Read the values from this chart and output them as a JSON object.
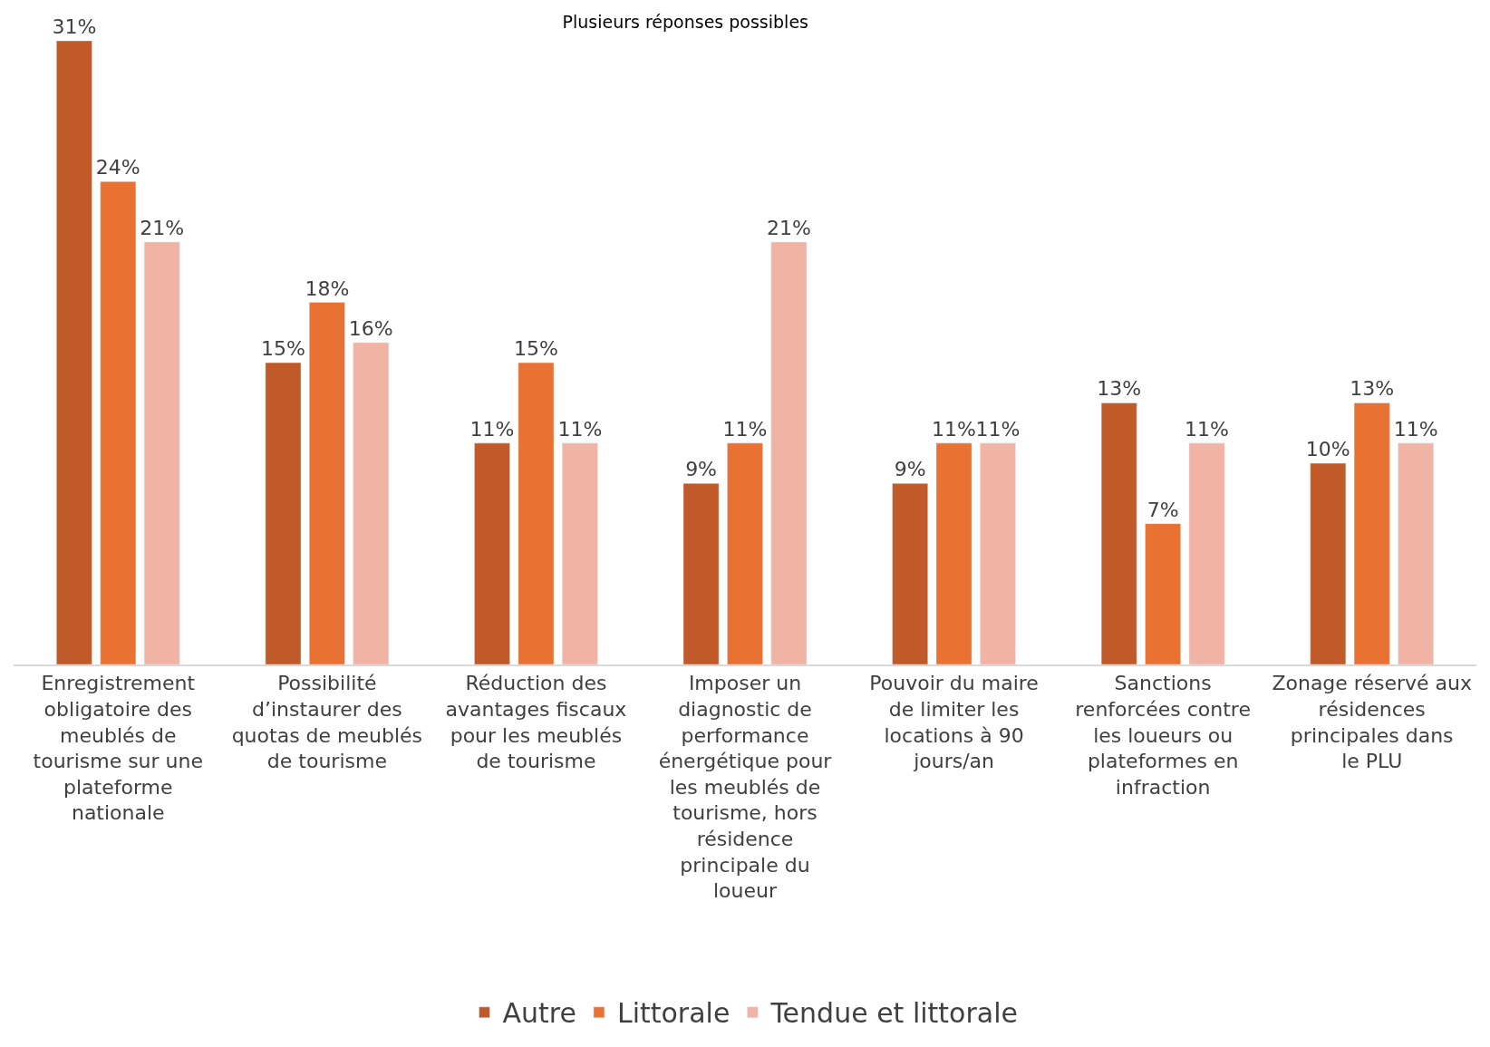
{
  "chart_data": {
    "type": "bar",
    "title": "Plusieurs réponses possibles",
    "categories": [
      "Enregistrement obligatoire des meublés de tourisme sur une plateforme nationale",
      "Possibilité d’instaurer des quotas de meublés de tourisme",
      "Réduction des avantages fiscaux pour les meublés de tourisme",
      "Imposer un diagnostic de performance énergétique pour les meublés de tourisme, hors résidence principale du loueur",
      "Pouvoir du maire de limiter les locations à 90 jours/an",
      "Sanctions renforcées contre les loueurs ou plateformes en infraction",
      "Zonage réservé aux résidences principales dans le PLU"
    ],
    "series": [
      {
        "name": "Autre",
        "color": "#c05a28",
        "values": [
          31,
          15,
          11,
          9,
          9,
          13,
          10
        ],
        "value_labels": [
          "31%",
          "15%",
          "11%",
          "9%",
          "9%",
          "13%",
          "10%"
        ]
      },
      {
        "name": "Littorale",
        "color": "#e97132",
        "values": [
          24,
          18,
          15,
          11,
          11,
          7,
          13
        ],
        "value_labels": [
          "24%",
          "18%",
          "15%",
          "11%",
          "11%",
          "7%",
          "13%"
        ]
      },
      {
        "name": "Tendue et littorale",
        "color": "#f1b3a4",
        "values": [
          21,
          16,
          11,
          21,
          11,
          11,
          11
        ],
        "value_labels": [
          "21%",
          "16%",
          "11%",
          "21%",
          "11%",
          "11%",
          "11%"
        ]
      }
    ],
    "legend": "bottom"
  }
}
